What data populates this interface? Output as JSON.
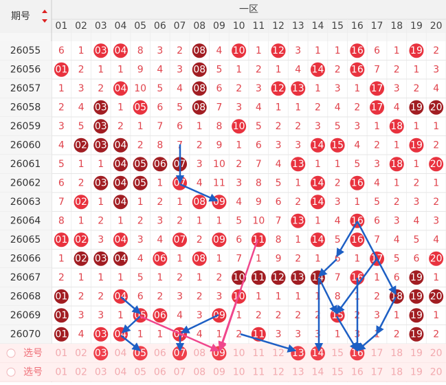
{
  "header": {
    "period": "期号",
    "zone": "一区",
    "numbers": [
      "01",
      "02",
      "03",
      "04",
      "05",
      "06",
      "07",
      "08",
      "09",
      "10",
      "11",
      "12",
      "13",
      "14",
      "15",
      "16",
      "17",
      "18",
      "19",
      "20"
    ]
  },
  "rows": [
    {
      "period": "26055",
      "cells": [
        "6",
        "1",
        {
          "text": "03",
          "ball": "red"
        },
        {
          "text": "04",
          "ball": "red"
        },
        "8",
        "3",
        "2",
        {
          "text": "08",
          "ball": "dark"
        },
        "4",
        {
          "text": "10",
          "ball": "red"
        },
        "1",
        {
          "text": "12",
          "ball": "red"
        },
        "3",
        "1",
        "1",
        {
          "text": "16",
          "ball": "red"
        },
        "6",
        "1",
        {
          "text": "19",
          "ball": "red"
        },
        "2"
      ]
    },
    {
      "period": "26056",
      "cells": [
        {
          "text": "01",
          "ball": "red"
        },
        "2",
        "1",
        "1",
        "9",
        "4",
        "3",
        {
          "text": "08",
          "ball": "dark"
        },
        "5",
        "1",
        "2",
        "1",
        "4",
        {
          "text": "14",
          "ball": "red"
        },
        "2",
        {
          "text": "16",
          "ball": "red"
        },
        "7",
        "2",
        "1",
        "3"
      ]
    },
    {
      "period": "26057",
      "cells": [
        "1",
        "3",
        "2",
        {
          "text": "04",
          "ball": "red"
        },
        "10",
        "5",
        "4",
        {
          "text": "08",
          "ball": "dark"
        },
        "6",
        "2",
        "3",
        {
          "text": "12",
          "ball": "red"
        },
        {
          "text": "13",
          "ball": "red"
        },
        "1",
        "3",
        "1",
        {
          "text": "17",
          "ball": "red"
        },
        "3",
        "2",
        "4"
      ]
    },
    {
      "period": "26058",
      "cells": [
        "2",
        "4",
        {
          "text": "03",
          "ball": "dark"
        },
        "1",
        {
          "text": "05",
          "ball": "red"
        },
        "6",
        "5",
        {
          "text": "08",
          "ball": "dark"
        },
        "7",
        "3",
        "4",
        "1",
        "1",
        "2",
        "4",
        "2",
        {
          "text": "17",
          "ball": "red"
        },
        "4",
        {
          "text": "19",
          "ball": "dark"
        },
        {
          "text": "20",
          "ball": "dark"
        }
      ]
    },
    {
      "period": "26059",
      "cells": [
        "3",
        "5",
        {
          "text": "03",
          "ball": "dark"
        },
        "2",
        "1",
        "7",
        "6",
        "1",
        "8",
        {
          "text": "10",
          "ball": "red"
        },
        "5",
        "2",
        "2",
        "3",
        "5",
        "3",
        "1",
        {
          "text": "18",
          "ball": "red"
        },
        "1",
        "1"
      ]
    },
    {
      "period": "26060",
      "cells": [
        "4",
        {
          "text": "02",
          "ball": "dark"
        },
        {
          "text": "03",
          "ball": "dark"
        },
        {
          "text": "04",
          "ball": "dark"
        },
        "2",
        "8",
        "7",
        "2",
        "9",
        "1",
        "6",
        "3",
        "3",
        {
          "text": "14",
          "ball": "red"
        },
        {
          "text": "15",
          "ball": "red"
        },
        "4",
        "2",
        "1",
        {
          "text": "19",
          "ball": "red"
        },
        "2"
      ]
    },
    {
      "period": "26061",
      "cells": [
        "5",
        "1",
        "1",
        {
          "text": "04",
          "ball": "dark"
        },
        {
          "text": "05",
          "ball": "dark"
        },
        {
          "text": "06",
          "ball": "dark"
        },
        {
          "text": "07",
          "ball": "dark"
        },
        "3",
        "10",
        "2",
        "7",
        "4",
        {
          "text": "13",
          "ball": "red"
        },
        "1",
        "1",
        "5",
        "3",
        {
          "text": "18",
          "ball": "red"
        },
        "1",
        {
          "text": "20",
          "ball": "red"
        }
      ]
    },
    {
      "period": "26062",
      "cells": [
        "6",
        "2",
        {
          "text": "03",
          "ball": "dark"
        },
        {
          "text": "04",
          "ball": "dark"
        },
        {
          "text": "05",
          "ball": "dark"
        },
        "1",
        {
          "text": "07",
          "ball": "red"
        },
        "4",
        "11",
        "3",
        "8",
        "5",
        "1",
        {
          "text": "14",
          "ball": "red"
        },
        "2",
        {
          "text": "16",
          "ball": "red"
        },
        "4",
        "1",
        "2",
        "1"
      ]
    },
    {
      "period": "26063",
      "cells": [
        "7",
        {
          "text": "02",
          "ball": "red"
        },
        "1",
        {
          "text": "04",
          "ball": "dark"
        },
        "1",
        "2",
        "1",
        {
          "text": "08",
          "ball": "red"
        },
        {
          "text": "09",
          "ball": "red"
        },
        "4",
        "9",
        "6",
        "2",
        {
          "text": "14",
          "ball": "red"
        },
        "3",
        "1",
        "5",
        "2",
        "3",
        "2"
      ]
    },
    {
      "period": "26064",
      "cells": [
        "8",
        "1",
        "2",
        "1",
        "2",
        "3",
        "2",
        "1",
        "1",
        "5",
        "10",
        "7",
        {
          "text": "13",
          "ball": "red"
        },
        "1",
        "4",
        {
          "text": "16",
          "ball": "red"
        },
        "6",
        "3",
        "4",
        "3"
      ]
    },
    {
      "period": "26065",
      "cells": [
        {
          "text": "01",
          "ball": "red"
        },
        {
          "text": "02",
          "ball": "red"
        },
        "3",
        {
          "text": "04",
          "ball": "red"
        },
        "3",
        "4",
        {
          "text": "07",
          "ball": "red"
        },
        "2",
        {
          "text": "09",
          "ball": "red"
        },
        "6",
        {
          "text": "11",
          "ball": "red"
        },
        "8",
        "1",
        {
          "text": "14",
          "ball": "red"
        },
        "5",
        {
          "text": "16",
          "ball": "red"
        },
        "7",
        "4",
        "5",
        "4"
      ]
    },
    {
      "period": "26066",
      "cells": [
        "1",
        {
          "text": "02",
          "ball": "dark"
        },
        {
          "text": "03",
          "ball": "dark"
        },
        {
          "text": "04",
          "ball": "dark"
        },
        "4",
        {
          "text": "06",
          "ball": "red"
        },
        "1",
        {
          "text": "08",
          "ball": "red"
        },
        "1",
        "7",
        "1",
        "9",
        "2",
        "1",
        "6",
        "1",
        {
          "text": "17",
          "ball": "red"
        },
        "5",
        "6",
        {
          "text": "20",
          "ball": "red"
        }
      ]
    },
    {
      "period": "26067",
      "cells": [
        "2",
        "1",
        "1",
        "1",
        "5",
        "1",
        "2",
        "1",
        "2",
        {
          "text": "10",
          "ball": "dark"
        },
        {
          "text": "11",
          "ball": "dark"
        },
        {
          "text": "12",
          "ball": "dark"
        },
        {
          "text": "13",
          "ball": "dark"
        },
        {
          "text": "14",
          "ball": "dark"
        },
        "7",
        {
          "text": "16",
          "ball": "red"
        },
        "1",
        "6",
        {
          "text": "19",
          "ball": "dark"
        },
        "1"
      ]
    },
    {
      "period": "26068",
      "cells": [
        {
          "text": "01",
          "ball": "dark"
        },
        "2",
        "2",
        {
          "text": "04",
          "ball": "red"
        },
        "6",
        "2",
        "3",
        "2",
        "3",
        {
          "text": "10",
          "ball": "red"
        },
        "1",
        "1",
        "1",
        "1",
        "8",
        "1",
        "2",
        {
          "text": "18",
          "ball": "dark"
        },
        {
          "text": "19",
          "ball": "dark"
        },
        {
          "text": "20",
          "ball": "dark"
        }
      ]
    },
    {
      "period": "26069",
      "cells": [
        {
          "text": "01",
          "ball": "dark"
        },
        "3",
        "3",
        "1",
        {
          "text": "05",
          "ball": "red"
        },
        {
          "text": "06",
          "ball": "red"
        },
        "4",
        "3",
        {
          "text": "09",
          "ball": "red"
        },
        "1",
        "2",
        "2",
        "2",
        "2",
        {
          "text": "15",
          "ball": "red"
        },
        "2",
        "3",
        "1",
        {
          "text": "19",
          "ball": "dark"
        },
        "1"
      ]
    },
    {
      "period": "26070",
      "cells": [
        {
          "text": "01",
          "ball": "dark"
        },
        "4",
        {
          "text": "03",
          "ball": "red"
        },
        {
          "text": "04",
          "ball": "red"
        },
        "1",
        "1",
        {
          "text": "07",
          "ball": "red"
        },
        "4",
        "1",
        "2",
        {
          "text": "11",
          "ball": "red"
        },
        "3",
        "3",
        "3",
        "1",
        "3",
        "1",
        "2",
        {
          "text": "19",
          "ball": "dark"
        },
        "2"
      ]
    }
  ],
  "selectors": [
    {
      "label": "选号",
      "cells": [
        "01",
        "02",
        {
          "text": "03",
          "ball": "pick"
        },
        "04",
        {
          "text": "05",
          "ball": "pick"
        },
        "06",
        {
          "text": "07",
          "ball": "pick"
        },
        "08",
        {
          "text": "09",
          "ball": "pick"
        },
        "10",
        "11",
        "12",
        {
          "text": "13",
          "ball": "pick"
        },
        {
          "text": "14",
          "ball": "pick"
        },
        "15",
        {
          "text": "16",
          "ball": "pick"
        },
        "17",
        "18",
        "19",
        "20"
      ]
    },
    {
      "label": "选号",
      "cells": [
        "01",
        "02",
        "03",
        "04",
        "05",
        "06",
        "07",
        "08",
        "09",
        "10",
        "11",
        "12",
        "13",
        "14",
        "15",
        "16",
        "17",
        "18",
        "19",
        "20"
      ]
    }
  ]
}
